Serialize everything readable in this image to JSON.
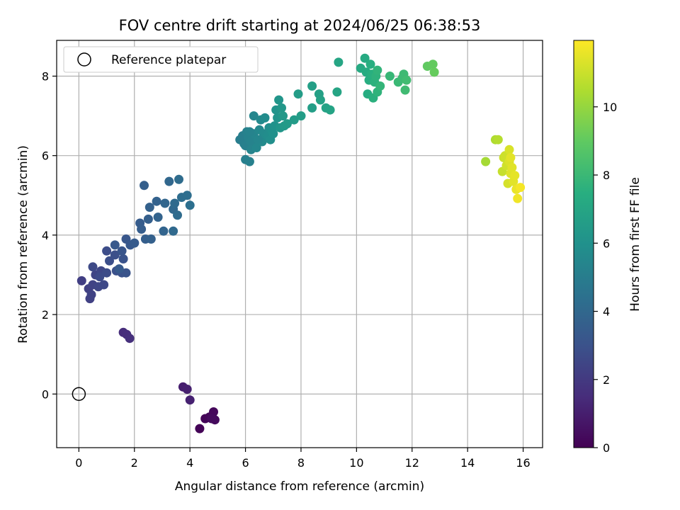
{
  "chart_data": {
    "type": "scatter",
    "title": "FOV centre drift starting at 2024/06/25 06:38:53",
    "xlabel": "Angular distance from reference (arcmin)",
    "ylabel": "Rotation from reference (arcmin)",
    "xlim": [
      -0.8,
      16.7
    ],
    "ylim": [
      -1.35,
      8.9
    ],
    "xticks": [
      0,
      2,
      4,
      6,
      8,
      10,
      12,
      14,
      16
    ],
    "yticks": [
      0,
      2,
      4,
      6,
      8
    ],
    "grid": true,
    "legend_position": "upper-left",
    "colormap": "viridis",
    "colorbar": {
      "label": "Hours from first FF file",
      "range": [
        0,
        11.95
      ],
      "ticks": [
        0,
        2,
        4,
        6,
        8,
        10
      ]
    },
    "reference": {
      "label": "Reference platepar",
      "x": 0,
      "y": 0
    },
    "series": [
      {
        "color_by": "hours",
        "points": [
          [
            4.35,
            -0.87,
            0.1
          ],
          [
            4.55,
            -0.62,
            0.15
          ],
          [
            4.7,
            -0.58,
            0.2
          ],
          [
            4.85,
            -0.45,
            0.25
          ],
          [
            4.9,
            -0.65,
            0.3
          ],
          [
            4.78,
            -0.62,
            0.35
          ],
          [
            3.75,
            0.18,
            1.0
          ],
          [
            3.9,
            0.12,
            1.05
          ],
          [
            4.0,
            -0.15,
            1.1
          ],
          [
            1.6,
            1.55,
            1.5
          ],
          [
            1.72,
            1.5,
            1.55
          ],
          [
            1.83,
            1.4,
            1.6
          ],
          [
            0.1,
            2.85,
            2.2
          ],
          [
            0.35,
            2.65,
            2.25
          ],
          [
            0.4,
            2.4,
            2.3
          ],
          [
            0.45,
            2.5,
            2.35
          ],
          [
            0.5,
            2.75,
            2.4
          ],
          [
            0.6,
            3.0,
            2.45
          ],
          [
            0.7,
            2.7,
            2.5
          ],
          [
            0.8,
            3.1,
            2.55
          ],
          [
            0.9,
            2.75,
            2.6
          ],
          [
            0.5,
            3.2,
            2.65
          ],
          [
            0.75,
            2.95,
            2.7
          ],
          [
            1.0,
            3.05,
            2.75
          ],
          [
            1.0,
            3.6,
            2.8
          ],
          [
            1.1,
            3.35,
            2.85
          ],
          [
            1.3,
            3.5,
            2.9
          ],
          [
            1.35,
            3.1,
            2.95
          ],
          [
            1.55,
            3.05,
            3.0
          ],
          [
            1.6,
            3.4,
            3.05
          ],
          [
            1.7,
            3.05,
            3.1
          ],
          [
            1.55,
            3.6,
            3.15
          ],
          [
            1.7,
            3.9,
            3.2
          ],
          [
            1.85,
            3.75,
            3.25
          ],
          [
            1.3,
            3.75,
            3.3
          ],
          [
            1.45,
            3.15,
            3.35
          ],
          [
            2.0,
            3.8,
            3.4
          ],
          [
            2.2,
            4.3,
            3.45
          ],
          [
            2.25,
            4.15,
            3.5
          ],
          [
            2.4,
            3.9,
            3.55
          ],
          [
            2.5,
            4.4,
            3.6
          ],
          [
            2.6,
            3.9,
            3.65
          ],
          [
            2.55,
            4.7,
            3.7
          ],
          [
            2.8,
            4.85,
            3.75
          ],
          [
            2.85,
            4.45,
            3.8
          ],
          [
            3.05,
            4.1,
            3.85
          ],
          [
            3.1,
            4.8,
            3.9
          ],
          [
            3.25,
            5.35,
            3.95
          ],
          [
            3.4,
            4.65,
            4.0
          ],
          [
            3.4,
            4.1,
            4.05
          ],
          [
            3.45,
            4.8,
            4.1
          ],
          [
            3.55,
            4.5,
            4.15
          ],
          [
            3.6,
            5.4,
            4.2
          ],
          [
            3.7,
            4.95,
            4.25
          ],
          [
            3.9,
            5.0,
            4.3
          ],
          [
            4.0,
            4.75,
            4.35
          ],
          [
            2.35,
            5.25,
            3.6
          ],
          [
            5.8,
            6.4,
            5.0
          ],
          [
            5.9,
            6.5,
            5.05
          ],
          [
            5.95,
            6.3,
            5.1
          ],
          [
            6.0,
            6.25,
            5.15
          ],
          [
            6.05,
            6.6,
            5.2
          ],
          [
            6.1,
            6.45,
            5.25
          ],
          [
            6.2,
            6.35,
            5.3
          ],
          [
            6.2,
            6.15,
            5.35
          ],
          [
            6.3,
            6.55,
            5.4
          ],
          [
            6.3,
            7.0,
            5.45
          ],
          [
            6.4,
            6.2,
            5.5
          ],
          [
            6.5,
            6.65,
            5.55
          ],
          [
            6.55,
            6.9,
            5.6
          ],
          [
            6.6,
            6.35,
            5.65
          ],
          [
            6.65,
            6.55,
            5.7
          ],
          [
            6.7,
            6.95,
            5.75
          ],
          [
            6.8,
            6.5,
            5.8
          ],
          [
            6.85,
            6.7,
            5.85
          ],
          [
            6.9,
            6.4,
            5.9
          ],
          [
            6.95,
            6.6,
            5.95
          ],
          [
            7.0,
            6.55,
            6.0
          ],
          [
            7.05,
            6.75,
            6.05
          ],
          [
            7.1,
            7.15,
            6.1
          ],
          [
            7.15,
            6.95,
            6.15
          ],
          [
            7.2,
            7.4,
            6.2
          ],
          [
            7.25,
            6.7,
            6.25
          ],
          [
            7.3,
            7.2,
            6.3
          ],
          [
            7.35,
            7.0,
            6.35
          ],
          [
            7.4,
            6.75,
            6.4
          ],
          [
            7.5,
            6.8,
            6.45
          ],
          [
            6.0,
            5.9,
            5.1
          ],
          [
            6.15,
            5.85,
            5.15
          ],
          [
            6.15,
            6.6,
            5.3
          ],
          [
            6.45,
            6.4,
            5.45
          ],
          [
            7.75,
            6.9,
            6.5
          ],
          [
            7.9,
            7.55,
            6.55
          ],
          [
            8.0,
            7.0,
            6.6
          ],
          [
            8.4,
            7.2,
            6.65
          ],
          [
            8.4,
            7.75,
            6.7
          ],
          [
            8.65,
            7.55,
            6.75
          ],
          [
            8.7,
            7.4,
            6.8
          ],
          [
            8.9,
            7.2,
            6.85
          ],
          [
            9.05,
            7.15,
            6.9
          ],
          [
            9.3,
            7.6,
            6.95
          ],
          [
            9.35,
            8.35,
            7.0
          ],
          [
            10.15,
            8.2,
            7.2
          ],
          [
            10.3,
            8.45,
            7.25
          ],
          [
            10.35,
            8.1,
            7.3
          ],
          [
            10.4,
            7.55,
            7.35
          ],
          [
            10.45,
            7.9,
            7.4
          ],
          [
            10.5,
            8.3,
            7.45
          ],
          [
            10.55,
            8.05,
            7.5
          ],
          [
            10.6,
            7.45,
            7.55
          ],
          [
            10.65,
            7.85,
            7.6
          ],
          [
            10.7,
            8.0,
            7.65
          ],
          [
            10.75,
            7.6,
            7.7
          ],
          [
            10.75,
            8.15,
            7.75
          ],
          [
            10.85,
            7.75,
            7.8
          ],
          [
            11.2,
            8.0,
            7.9
          ],
          [
            11.5,
            7.85,
            8.0
          ],
          [
            11.65,
            7.95,
            8.05
          ],
          [
            11.7,
            8.05,
            8.1
          ],
          [
            11.75,
            7.65,
            8.15
          ],
          [
            11.8,
            7.9,
            8.2
          ],
          [
            12.55,
            8.25,
            9.0
          ],
          [
            12.75,
            8.3,
            9.05
          ],
          [
            12.8,
            8.1,
            9.1
          ],
          [
            14.65,
            5.85,
            10.3
          ],
          [
            15.0,
            6.4,
            10.5
          ],
          [
            15.1,
            6.4,
            10.6
          ],
          [
            15.25,
            5.6,
            10.9
          ],
          [
            15.3,
            5.95,
            11.0
          ],
          [
            15.35,
            6.0,
            11.05
          ],
          [
            15.4,
            5.75,
            11.1
          ],
          [
            15.45,
            5.3,
            11.2
          ],
          [
            15.5,
            6.15,
            11.25
          ],
          [
            15.5,
            5.85,
            11.3
          ],
          [
            15.55,
            5.55,
            11.35
          ],
          [
            15.6,
            5.7,
            11.4
          ],
          [
            15.65,
            5.35,
            11.45
          ],
          [
            15.7,
            5.5,
            11.5
          ],
          [
            15.75,
            5.15,
            11.6
          ],
          [
            15.8,
            4.92,
            11.7
          ],
          [
            15.9,
            5.2,
            11.8
          ],
          [
            15.55,
            5.95,
            11.45
          ]
        ]
      }
    ]
  }
}
